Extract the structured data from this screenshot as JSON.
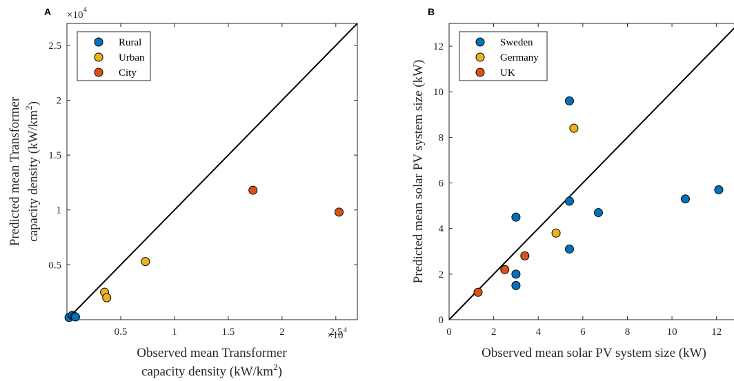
{
  "chart_data": [
    {
      "panel_label": "A",
      "type": "scatter",
      "xlabel": [
        "Observed mean Transformer",
        "capacity density (kW/km",
        "2",
        ")"
      ],
      "ylabel": [
        "Predicted mean Transformer",
        "capacity density (kW/km",
        "2",
        ")"
      ],
      "xlim": [
        0,
        27000
      ],
      "ylim": [
        0,
        27000
      ],
      "xticks": [
        5000,
        10000,
        15000,
        20000,
        25000
      ],
      "xtick_labels": [
        "0.5",
        "1",
        "1.5",
        "2",
        "2.5"
      ],
      "yticks": [
        5000,
        10000,
        15000,
        20000,
        25000
      ],
      "ytick_labels": [
        "0.5",
        "1",
        "1.5",
        "2",
        "2.5"
      ],
      "x_multiplier": [
        "×10",
        "4"
      ],
      "y_multiplier": [
        "×10",
        "4"
      ],
      "legend_position": "top-left",
      "reference_line": "y = x",
      "series": [
        {
          "name": "Rural",
          "color": "#0072BD",
          "points": [
            [
              200,
              200
            ],
            [
              500,
              400
            ],
            [
              700,
              300
            ],
            [
              800,
              250
            ]
          ]
        },
        {
          "name": "Urban",
          "color": "#EDB120",
          "points": [
            [
              3500,
              2500
            ],
            [
              3700,
              2000
            ],
            [
              7300,
              5300
            ]
          ]
        },
        {
          "name": "City",
          "color": "#D95319",
          "points": [
            [
              17300,
              11800
            ],
            [
              25300,
              9800
            ]
          ]
        }
      ]
    },
    {
      "panel_label": "B",
      "type": "scatter",
      "xlabel": [
        "Observed mean solar PV system size (kW)"
      ],
      "ylabel": [
        "Predicted mean solar PV system size (kW)"
      ],
      "xlim": [
        0,
        13
      ],
      "ylim": [
        0,
        13
      ],
      "xticks": [
        0,
        2,
        4,
        6,
        8,
        10,
        12
      ],
      "xtick_labels": [
        "0",
        "2",
        "4",
        "6",
        "8",
        "10",
        "12"
      ],
      "yticks": [
        0,
        2,
        4,
        6,
        8,
        10,
        12
      ],
      "ytick_labels": [
        "0",
        "2",
        "4",
        "6",
        "8",
        "10",
        "12"
      ],
      "legend_position": "top-left",
      "reference_line": "y = x",
      "series": [
        {
          "name": "Sweden",
          "color": "#0072BD",
          "points": [
            [
              5.4,
              9.6
            ],
            [
              3.0,
              4.5
            ],
            [
              5.4,
              5.2
            ],
            [
              6.7,
              4.7
            ],
            [
              5.4,
              3.1
            ],
            [
              3.0,
              2.0
            ],
            [
              3.0,
              1.5
            ],
            [
              10.6,
              5.3
            ],
            [
              12.1,
              5.7
            ]
          ]
        },
        {
          "name": "Germany",
          "color": "#EDB120",
          "points": [
            [
              5.6,
              8.4
            ],
            [
              4.8,
              3.8
            ]
          ]
        },
        {
          "name": "UK",
          "color": "#D95319",
          "points": [
            [
              2.5,
              2.2
            ],
            [
              3.4,
              2.8
            ],
            [
              1.3,
              1.2
            ]
          ]
        }
      ]
    }
  ]
}
